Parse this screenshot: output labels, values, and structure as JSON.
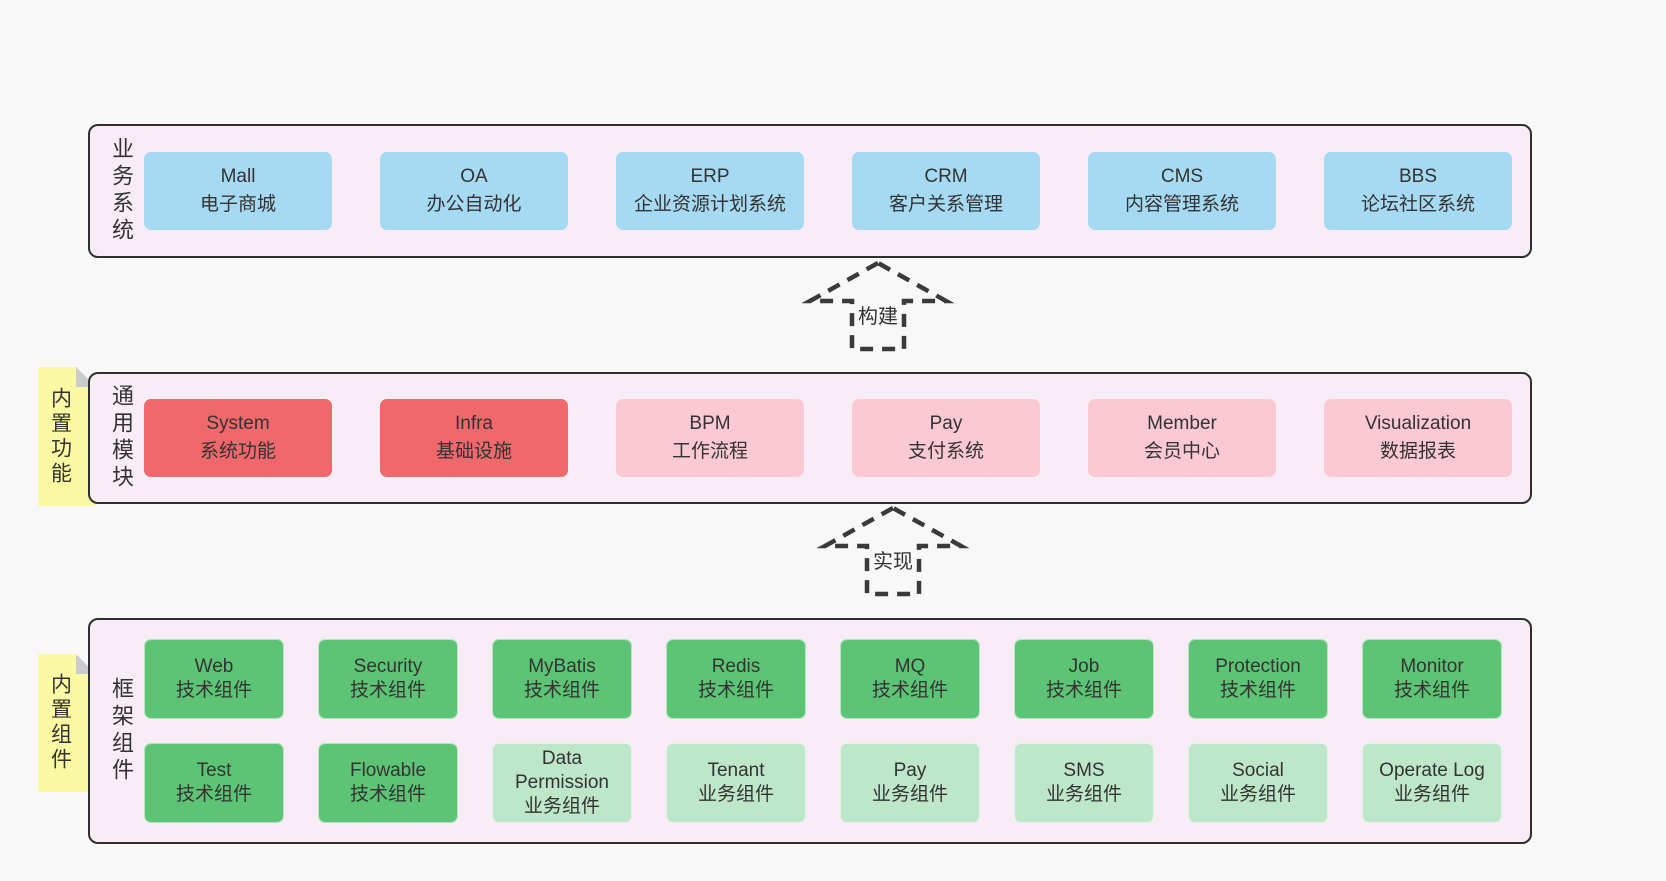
{
  "colors": {
    "page-bg": "#f8f8f8",
    "panel-bg": "#f8edf6",
    "border": "#2f2f2f",
    "ink": "#333333",
    "blue": "#a6d9f2",
    "red": "#ef686c",
    "pink": "#fbc9d3",
    "green": "#5ec475",
    "lightgreen": "#bee6c9",
    "yellow": "#fbf9a1",
    "fold": "#c9cbcd"
  },
  "panels": [
    {
      "label": "业务系统",
      "items": [
        {
          "title": "Mall",
          "subtitle": "电子商城",
          "variant": "blue"
        },
        {
          "title": "OA",
          "subtitle": "办公自动化",
          "variant": "blue"
        },
        {
          "title": "ERP",
          "subtitle": "企业资源计划系统",
          "variant": "blue"
        },
        {
          "title": "CRM",
          "subtitle": "客户关系管理",
          "variant": "blue"
        },
        {
          "title": "CMS",
          "subtitle": "内容管理系统",
          "variant": "blue"
        },
        {
          "title": "BBS",
          "subtitle": "论坛社区系统",
          "variant": "blue"
        }
      ]
    },
    {
      "label": "通用模块",
      "sticky": "内置功能",
      "items": [
        {
          "title": "System",
          "subtitle": "系统功能",
          "variant": "red"
        },
        {
          "title": "Infra",
          "subtitle": "基础设施",
          "variant": "red"
        },
        {
          "title": "BPM",
          "subtitle": "工作流程",
          "variant": "pink"
        },
        {
          "title": "Pay",
          "subtitle": "支付系统",
          "variant": "pink"
        },
        {
          "title": "Member",
          "subtitle": "会员中心",
          "variant": "pink"
        },
        {
          "title": "Visualization",
          "subtitle": "数据报表",
          "variant": "pink"
        }
      ]
    },
    {
      "label": "框架组件",
      "sticky": "内置组件",
      "rows": [
        [
          {
            "title": "Web",
            "subtitle": "技术组件",
            "variant": "green"
          },
          {
            "title": "Security",
            "subtitle": "技术组件",
            "variant": "green"
          },
          {
            "title": "MyBatis",
            "subtitle": "技术组件",
            "variant": "green"
          },
          {
            "title": "Redis",
            "subtitle": "技术组件",
            "variant": "green"
          },
          {
            "title": "MQ",
            "subtitle": "技术组件",
            "variant": "green"
          },
          {
            "title": "Job",
            "subtitle": "技术组件",
            "variant": "green"
          },
          {
            "title": "Protection",
            "subtitle": "技术组件",
            "variant": "green"
          },
          {
            "title": "Monitor",
            "subtitle": "技术组件",
            "variant": "green"
          }
        ],
        [
          {
            "title": "Test",
            "subtitle": "技术组件",
            "variant": "green"
          },
          {
            "title": "Flowable",
            "subtitle": "技术组件",
            "variant": "green"
          },
          {
            "title": "Data Permission",
            "subtitle": "业务组件",
            "variant": "lightgreen"
          },
          {
            "title": "Tenant",
            "subtitle": "业务组件",
            "variant": "lightgreen"
          },
          {
            "title": "Pay",
            "subtitle": "业务组件",
            "variant": "lightgreen"
          },
          {
            "title": "SMS",
            "subtitle": "业务组件",
            "variant": "lightgreen"
          },
          {
            "title": "Social",
            "subtitle": "业务组件",
            "variant": "lightgreen"
          },
          {
            "title": "Operate Log",
            "subtitle": "业务组件",
            "variant": "lightgreen"
          }
        ]
      ]
    }
  ],
  "arrows": [
    {
      "label": "构建"
    },
    {
      "label": "实现"
    }
  ]
}
